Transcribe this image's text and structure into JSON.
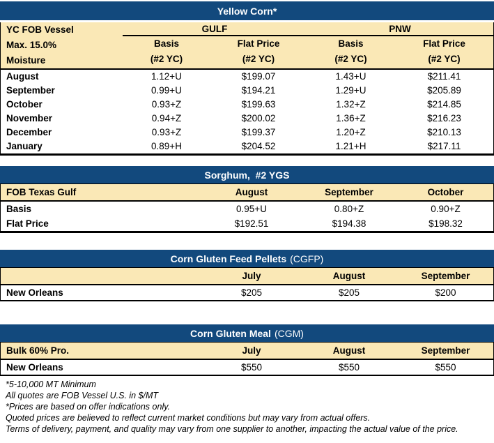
{
  "colors": {
    "navy": "#12497D",
    "cream": "#FAE8B6"
  },
  "yellow_corn": {
    "title": "Yellow Corn*",
    "row_header": [
      "YC FOB Vessel",
      "Max. 15.0%",
      "Moisture"
    ],
    "groups": [
      "GULF",
      "PNW"
    ],
    "sub_headers": [
      [
        "Basis",
        "(#2 YC)"
      ],
      [
        "Flat Price",
        "(#2 YC)"
      ],
      [
        "Basis",
        "(#2 YC)"
      ],
      [
        "Flat Price",
        "(#2 YC)"
      ]
    ],
    "rows": [
      {
        "label": "August",
        "cells": [
          "1.12+U",
          "$199.07",
          "1.43+U",
          "$211.41"
        ]
      },
      {
        "label": "September",
        "cells": [
          "0.99+U",
          "$194.21",
          "1.29+U",
          "$205.89"
        ]
      },
      {
        "label": "October",
        "cells": [
          "0.93+Z",
          "$199.63",
          "1.32+Z",
          "$214.85"
        ]
      },
      {
        "label": "November",
        "cells": [
          "0.94+Z",
          "$200.02",
          "1.36+Z",
          "$216.23"
        ]
      },
      {
        "label": "December",
        "cells": [
          "0.93+Z",
          "$199.37",
          "1.20+Z",
          "$210.13"
        ]
      },
      {
        "label": "January",
        "cells": [
          "0.89+H",
          "$204.52",
          "1.21+H",
          "$217.11"
        ]
      }
    ]
  },
  "sorghum": {
    "title": "Sorghum,  #2 YGS",
    "corner": "FOB Texas Gulf",
    "months": [
      "August",
      "September",
      "October"
    ],
    "rows": [
      {
        "label": "Basis",
        "cells": [
          "0.95+U",
          "0.80+Z",
          "0.90+Z"
        ]
      },
      {
        "label": "Flat Price",
        "cells": [
          "$192.51",
          "$194.38",
          "$198.32"
        ]
      }
    ]
  },
  "cgfp": {
    "title_bold": "Corn Gluten Feed Pellets",
    "title_suffix": "(CGFP)",
    "corner": "",
    "months": [
      "July",
      "August",
      "September"
    ],
    "rows": [
      {
        "label": "New Orleans",
        "cells": [
          "$205",
          "$205",
          "$200"
        ]
      }
    ]
  },
  "cgm": {
    "title_bold": "Corn Gluten Meal",
    "title_suffix": "(CGM)",
    "corner": "Bulk 60% Pro.",
    "months": [
      "July",
      "August",
      "September"
    ],
    "rows": [
      {
        "label": "New Orleans",
        "cells": [
          "$550",
          "$550",
          "$550"
        ]
      }
    ]
  },
  "footer": {
    "notes": [
      "*5-10,000 MT Minimum",
      "All quotes are FOB Vessel U.S. in $/MT",
      "*Prices are based on offer indications only.",
      "Quoted prices are believed to reflect current market conditions but may vary from actual offers.",
      "Terms of delivery, payment, and quality may vary from one supplier to another, impacting the actual value of the price."
    ]
  }
}
